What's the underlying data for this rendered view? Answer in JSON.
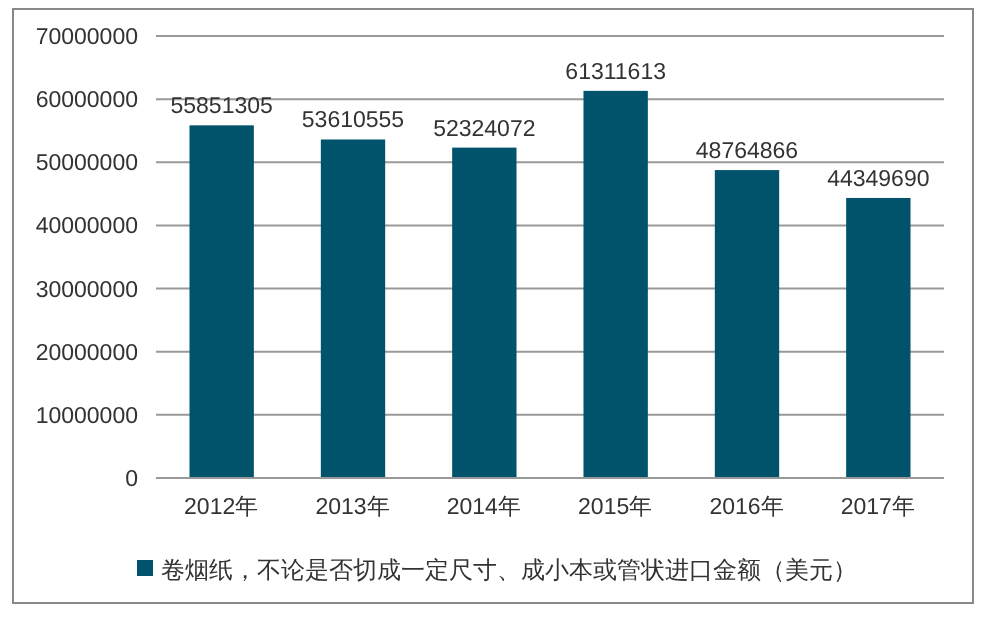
{
  "chart_data": {
    "type": "bar",
    "categories": [
      "2012年",
      "2013年",
      "2014年",
      "2015年",
      "2016年",
      "2017年"
    ],
    "series": [
      {
        "name": "卷烟纸，不论是否切成一定尺寸、成小本或管状进口金额（美元）",
        "color": "#01536c",
        "values": [
          55851305,
          53610555,
          52324072,
          61311613,
          48764866,
          44349690
        ]
      }
    ],
    "ylim": [
      0,
      70000000
    ],
    "yticks": [
      0,
      10000000,
      20000000,
      30000000,
      40000000,
      50000000,
      60000000,
      70000000
    ],
    "grid": "y",
    "legend": "bottom",
    "data_labels": true
  }
}
